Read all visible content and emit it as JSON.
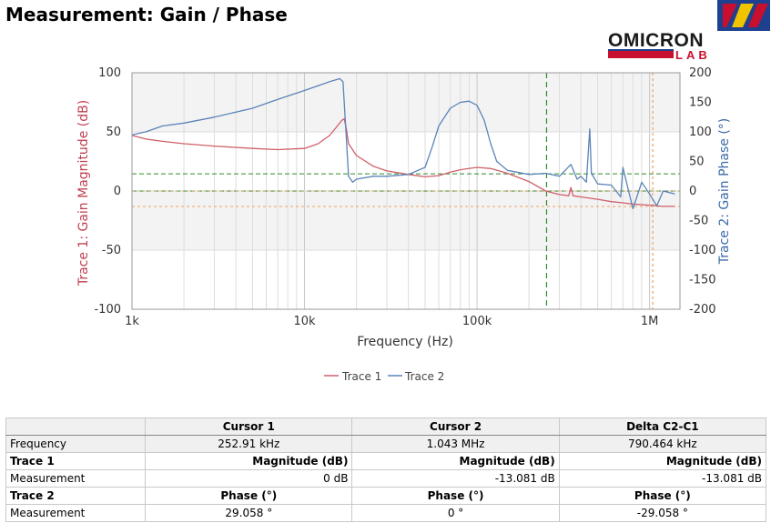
{
  "page": {
    "title": "Measurement: Gain / Phase"
  },
  "logo": {
    "line1": "OMICRON",
    "line2": "LAB"
  },
  "chart_data": {
    "type": "line",
    "xlabel": "Frequency (Hz)",
    "ylabel_left": "Trace 1: Gain Magnitude (dB)",
    "ylabel_right": "Trace 2: Gain Phase (°)",
    "xscale": "log",
    "xlim": [
      1000,
      1500000
    ],
    "ylim_left": [
      -100,
      100
    ],
    "ylim_right": [
      -200,
      200
    ],
    "x_ticks": [
      {
        "v": 1000,
        "label": "1k"
      },
      {
        "v": 10000,
        "label": "10k"
      },
      {
        "v": 100000,
        "label": "100k"
      },
      {
        "v": 1000000,
        "label": "1M"
      }
    ],
    "y_ticks_left": [
      "100",
      "50",
      "0",
      "-50",
      "-100"
    ],
    "y_ticks_right": [
      "200",
      "150",
      "100",
      "50",
      "0",
      "-50",
      "-100",
      "-150",
      "-200"
    ],
    "grid": true,
    "legend_position": "bottom-center",
    "colors": {
      "trace1": "#d0606a",
      "trace2": "#5b84b8",
      "cursor1": "#2e8b2e",
      "cursor2": "#f0a060"
    },
    "series": [
      {
        "name": "Trace 1",
        "axis": "left",
        "x": [
          1000,
          1200,
          1500,
          2000,
          3000,
          5000,
          7000,
          10000,
          12000,
          14000,
          15500,
          16500,
          17000,
          17500,
          18000,
          20000,
          25000,
          30000,
          40000,
          50000,
          60000,
          70000,
          80000,
          100000,
          120000,
          150000,
          200000,
          250000,
          300000,
          340000,
          350000,
          360000,
          400000,
          500000,
          600000,
          700000,
          800000,
          1000000,
          1200000,
          1400000
        ],
        "y": [
          47,
          44,
          42,
          40,
          38,
          36,
          35,
          36,
          40,
          47,
          55,
          60,
          61,
          52,
          40,
          30,
          21,
          17,
          14,
          12,
          13,
          16,
          18,
          20,
          19,
          15,
          8,
          0,
          -3,
          -4,
          3,
          -4,
          -5,
          -7,
          -9,
          -10,
          -11,
          -12,
          -13,
          -13
        ]
      },
      {
        "name": "Trace 2",
        "axis": "right",
        "x": [
          1000,
          1200,
          1500,
          2000,
          3000,
          5000,
          7000,
          10000,
          12000,
          14000,
          16000,
          16700,
          17300,
          18000,
          19000,
          20000,
          25000,
          30000,
          40000,
          50000,
          55000,
          60000,
          70000,
          80000,
          90000,
          100000,
          110000,
          120000,
          130000,
          150000,
          200000,
          250000,
          300000,
          350000,
          380000,
          400000,
          430000,
          450000,
          460000,
          500000,
          600000,
          680000,
          700000,
          800000,
          900000,
          1000000,
          1100000,
          1200000,
          1400000
        ],
        "y": [
          95,
          100,
          110,
          115,
          125,
          140,
          155,
          170,
          178,
          185,
          190,
          185,
          110,
          25,
          15,
          20,
          25,
          25,
          28,
          40,
          75,
          110,
          140,
          150,
          152,
          145,
          120,
          80,
          50,
          35,
          28,
          30,
          25,
          45,
          20,
          25,
          15,
          105,
          30,
          12,
          10,
          -10,
          40,
          -30,
          15,
          -5,
          -25,
          0,
          -5
        ]
      }
    ],
    "cursors": [
      {
        "name": "Cursor 1",
        "x": 252910,
        "y_left": 0,
        "y_right": 29.058
      },
      {
        "name": "Cursor 2",
        "x": 1043000,
        "y_left": -13.081,
        "y_right": 0
      }
    ]
  },
  "legend": {
    "trace1": "Trace 1",
    "trace2": "Trace 2"
  },
  "table": {
    "headers": [
      "",
      "Cursor 1",
      "Cursor 2",
      "Delta C2-C1"
    ],
    "frequency": {
      "label": "Frequency",
      "values": [
        "252.91 kHz",
        "1.043 MHz",
        "790.464 kHz"
      ]
    },
    "trace1": {
      "label": "Trace 1",
      "unit": "Magnitude (dB)"
    },
    "trace1_meas": {
      "label": "Measurement",
      "values": [
        "0 dB",
        "-13.081 dB",
        "-13.081 dB"
      ]
    },
    "trace2": {
      "label": "Trace 2",
      "unit": "Phase (°)"
    },
    "trace2_meas": {
      "label": "Measurement",
      "values": [
        "29.058 °",
        "0 °",
        "-29.058 °"
      ]
    }
  }
}
